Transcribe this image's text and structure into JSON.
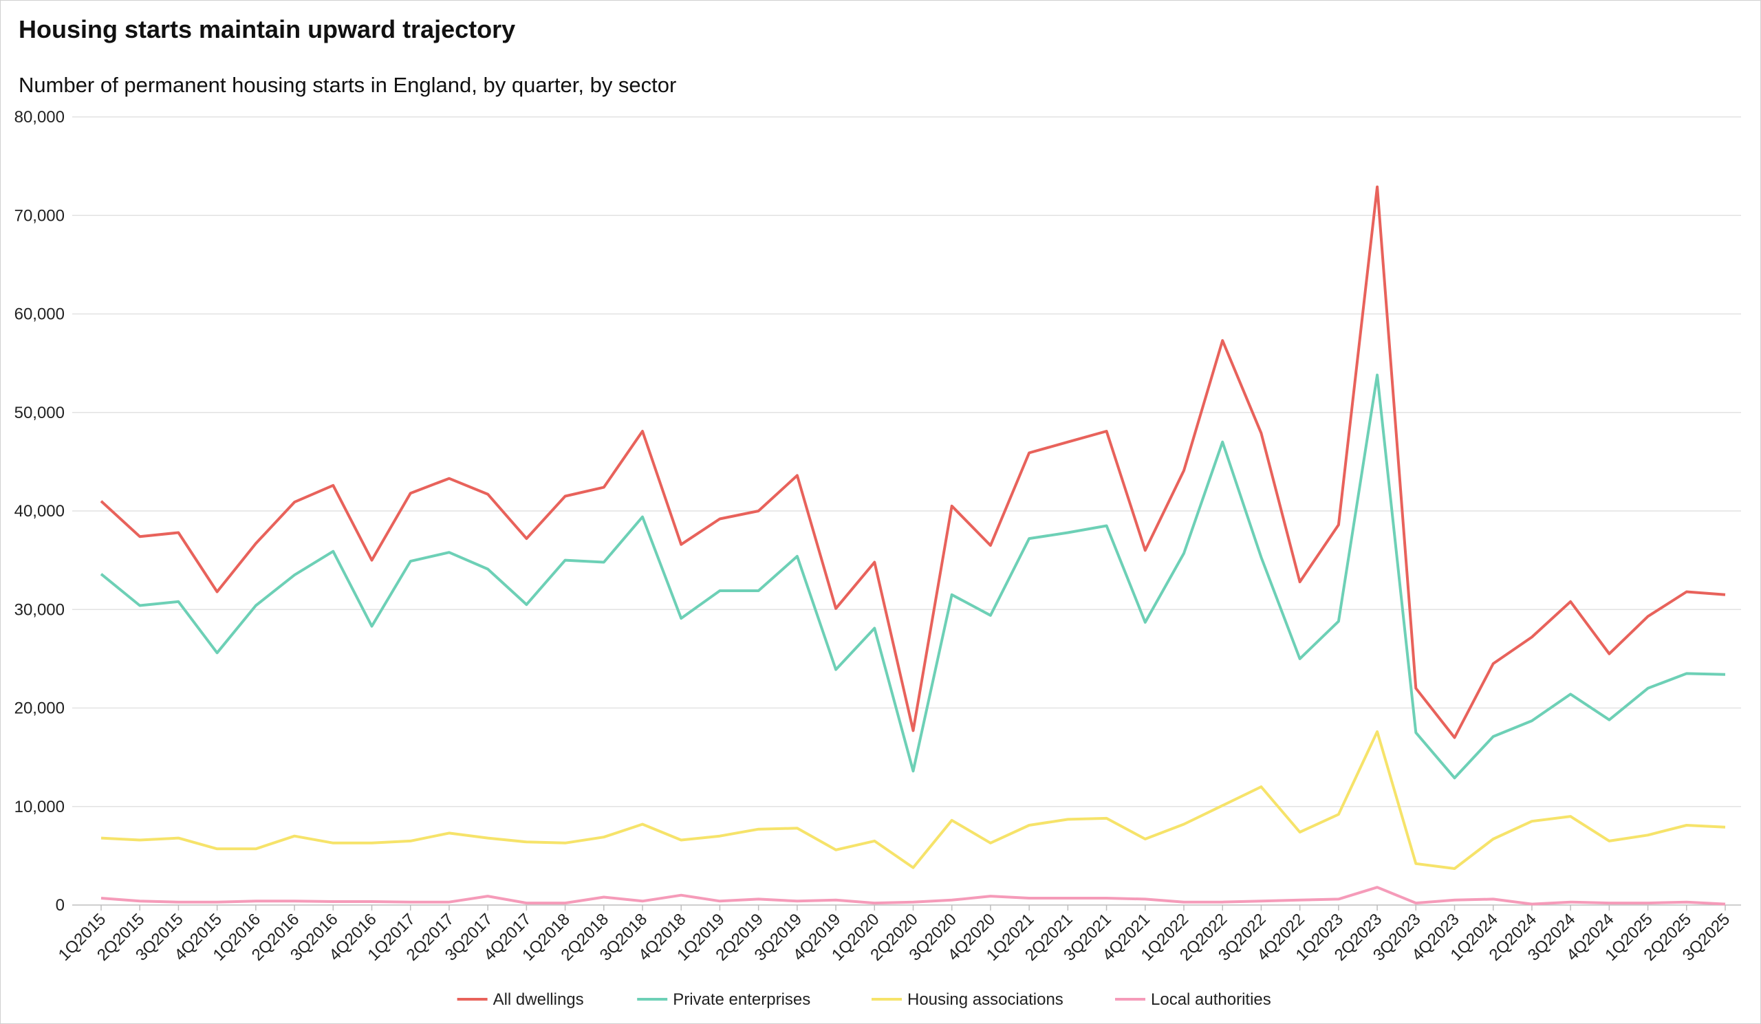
{
  "chart_data": {
    "type": "line",
    "title": "Housing starts maintain upward trajectory",
    "subtitle": "Number of permanent housing starts in England, by quarter, by sector",
    "xlabel": "",
    "ylabel": "",
    "ylim": [
      0,
      80000
    ],
    "yticks": [
      0,
      10000,
      20000,
      30000,
      40000,
      50000,
      60000,
      70000,
      80000
    ],
    "ytick_labels": [
      "0",
      "10,000",
      "20,000",
      "30,000",
      "40,000",
      "50,000",
      "60,000",
      "70,000",
      "80,000"
    ],
    "grid": true,
    "legend_position": "bottom",
    "x": [
      "1Q2015",
      "2Q2015",
      "3Q2015",
      "4Q2015",
      "1Q2016",
      "2Q2016",
      "3Q2016",
      "4Q2016",
      "1Q2017",
      "2Q2017",
      "3Q2017",
      "4Q2017",
      "1Q2018",
      "2Q2018",
      "3Q2018",
      "4Q2018",
      "1Q2019",
      "2Q2019",
      "3Q2019",
      "4Q2019",
      "1Q2020",
      "2Q2020",
      "3Q2020",
      "4Q2020",
      "1Q2021",
      "2Q2021",
      "3Q2021",
      "4Q2021",
      "1Q2022",
      "2Q2022",
      "3Q2022",
      "4Q2022",
      "1Q2023",
      "2Q2023",
      "3Q2023",
      "4Q2023",
      "1Q2024",
      "2Q2024",
      "3Q2024",
      "4Q2024",
      "1Q2025",
      "2Q2025",
      "3Q2025"
    ],
    "series": [
      {
        "name": "All dwellings",
        "color": "#e8625b",
        "values": [
          41000,
          37400,
          37800,
          31800,
          36700,
          40900,
          42600,
          35000,
          41800,
          43300,
          41700,
          37200,
          41500,
          42400,
          48100,
          36600,
          39200,
          40000,
          43600,
          30100,
          34800,
          17700,
          40500,
          36500,
          45900,
          47000,
          48100,
          36000,
          44100,
          57300,
          47900,
          32800,
          38600,
          72900,
          22000,
          17000,
          24500,
          27200,
          30800,
          25500,
          29300,
          31800,
          31500
        ]
      },
      {
        "name": "Private enterprises",
        "color": "#6dd0b6",
        "values": [
          33600,
          30400,
          30800,
          25600,
          30400,
          33500,
          35900,
          28300,
          34900,
          35800,
          34100,
          30500,
          35000,
          34800,
          39400,
          29100,
          31900,
          31900,
          35400,
          23900,
          28100,
          13600,
          31500,
          29400,
          37200,
          37800,
          38500,
          28700,
          35700,
          47000,
          35300,
          25000,
          28800,
          53800,
          17500,
          12900,
          17100,
          18700,
          21400,
          18800,
          22000,
          23500,
          23400
        ]
      },
      {
        "name": "Housing associations",
        "color": "#f6e36a",
        "values": [
          6800,
          6600,
          6800,
          5700,
          5700,
          7000,
          6300,
          6300,
          6500,
          7300,
          6800,
          6400,
          6300,
          6900,
          8200,
          6600,
          7000,
          7700,
          7800,
          5600,
          6500,
          3800,
          8600,
          6300,
          8100,
          8700,
          8800,
          6700,
          8200,
          10100,
          12000,
          7400,
          9200,
          17600,
          4200,
          3700,
          6700,
          8500,
          9000,
          6500,
          7100,
          8100,
          7900
        ]
      },
      {
        "name": "Local authorities",
        "color": "#f59bb9",
        "values": [
          700,
          400,
          300,
          300,
          400,
          400,
          350,
          350,
          300,
          300,
          900,
          200,
          200,
          800,
          400,
          1000,
          400,
          600,
          400,
          500,
          200,
          300,
          500,
          900,
          700,
          700,
          700,
          600,
          300,
          300,
          400,
          500,
          600,
          1800,
          200,
          500,
          600,
          100,
          300,
          200,
          200,
          300,
          100
        ]
      }
    ]
  }
}
